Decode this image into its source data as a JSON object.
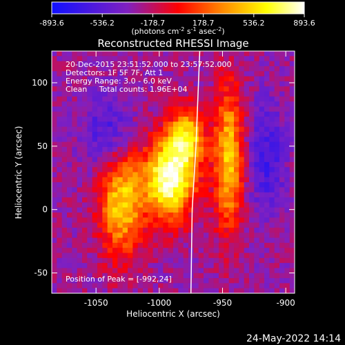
{
  "colorbar": {
    "tick_labels": [
      "-893.6",
      "-536.2",
      "-178.7",
      "178.7",
      "536.2",
      "893.6"
    ],
    "units_parts": [
      "(photons cm",
      "-2",
      " s",
      "-1",
      " asec",
      "-2",
      ")"
    ],
    "range": [
      -893.6,
      893.6
    ],
    "colors": [
      "#1010ff",
      "#8020c0",
      "#ff0000",
      "#ff8c00",
      "#ffff00",
      "#ffffff"
    ]
  },
  "header": {
    "title": "Reconstructed RHESSI Image",
    "info_lines": [
      "20-Dec-2015 23:51:52.000 to 23:57:52.000",
      "Detectors: 1F 5F 7F, Att 1",
      "Energy Range: 3.0 - 6.0 keV",
      "Clean     Total counts: 1.96E+04"
    ],
    "peak_label": "Position of Peak = [-992,24]",
    "timestamp": "24-May-2022 14:14"
  },
  "chart_data": {
    "type": "heatmap",
    "title": "Reconstructed RHESSI Image",
    "xlabel": "Heliocentric X (arcsec)",
    "ylabel": "Heliocentric Y (arcsec)",
    "xlim": [
      -1085,
      -893
    ],
    "ylim": [
      -66,
      125
    ],
    "x_ticks": [
      -1050,
      -1000,
      -950,
      -900
    ],
    "y_ticks": [
      -50,
      0,
      50,
      100
    ],
    "x_tick_labels": [
      "-1050",
      "-1000",
      "-950",
      "-900"
    ],
    "y_tick_labels": [
      "-50",
      "0",
      "50",
      "100"
    ],
    "peak": [
      -992,
      24
    ],
    "peak_value": 893.6,
    "limb_curve": [
      [
        -975,
        -66
      ],
      [
        -974,
        0
      ],
      [
        -971,
        50
      ],
      [
        -968,
        125
      ]
    ],
    "grid": false,
    "colorscale": "red-temperature"
  }
}
